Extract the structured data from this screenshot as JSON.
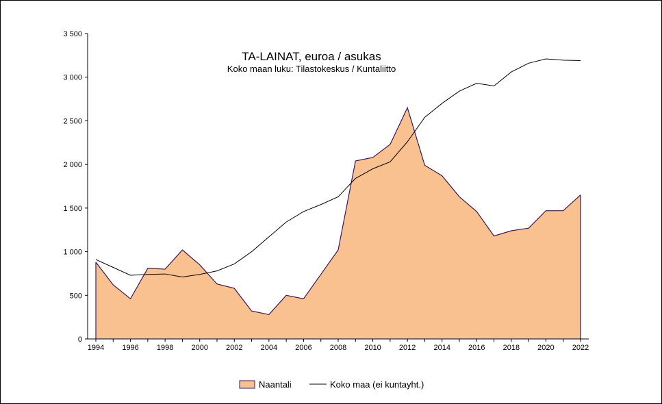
{
  "chart_data": {
    "type": "area",
    "title": "TA-LAINAT,  euroa / asukas",
    "subtitle": "Koko maan luku: Tilastokeskus / Kuntaliitto",
    "x": [
      1994,
      1995,
      1996,
      1997,
      1998,
      1999,
      2000,
      2001,
      2002,
      2003,
      2004,
      2005,
      2006,
      2007,
      2008,
      2009,
      2010,
      2011,
      2012,
      2013,
      2014,
      2015,
      2016,
      2017,
      2018,
      2019,
      2020,
      2021,
      2022
    ],
    "x_ticks": [
      "1994",
      "1996",
      "1998",
      "2000",
      "2002",
      "2004",
      "2006",
      "2008",
      "2010",
      "2012",
      "2014",
      "2016",
      "2018",
      "2020",
      "2022"
    ],
    "y_ticks": [
      "0",
      "500",
      "1 000",
      "1 500",
      "2 000",
      "2 500",
      "3 000",
      "3 500"
    ],
    "ylim": [
      0,
      3500
    ],
    "series": [
      {
        "name": "Naantali",
        "kind": "area",
        "fill": "#F9C090",
        "stroke": "#2B1B6E",
        "values": [
          880,
          620,
          460,
          810,
          800,
          1020,
          850,
          630,
          580,
          320,
          280,
          500,
          460,
          740,
          1020,
          2040,
          2080,
          2230,
          2650,
          1990,
          1870,
          1630,
          1460,
          1180,
          1240,
          1270,
          1470,
          1470,
          1650
        ]
      },
      {
        "name": "Koko maa (ei kuntayht.)",
        "kind": "line",
        "stroke": "#000000",
        "values": [
          910,
          820,
          730,
          740,
          745,
          710,
          740,
          780,
          860,
          1000,
          1170,
          1340,
          1460,
          1540,
          1630,
          1840,
          1950,
          2030,
          2260,
          2540,
          2700,
          2840,
          2930,
          2900,
          3060,
          3160,
          3210,
          3195,
          3190
        ]
      }
    ],
    "grid": false,
    "legend": "bottom"
  }
}
